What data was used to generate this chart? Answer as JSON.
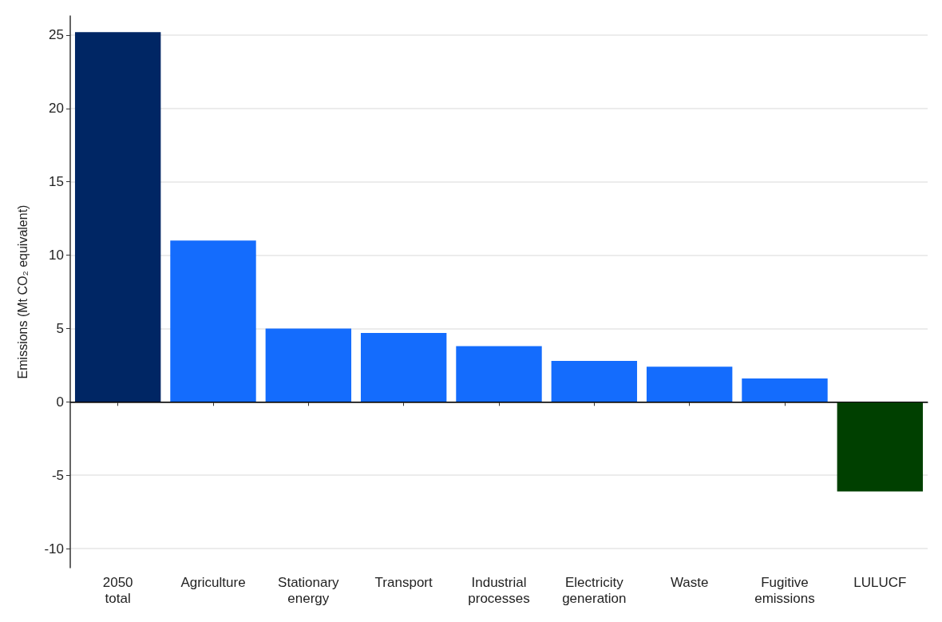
{
  "chart_data": {
    "type": "bar",
    "ylabel": "Emissions (Mt CO₂ equivalent)",
    "categories": [
      "2050 total",
      "Agriculture",
      "Stationary energy",
      "Transport",
      "Industrial processes",
      "Electricity generation",
      "Waste",
      "Fugitive emissions",
      "LULUCF"
    ],
    "values": [
      25.2,
      11.0,
      5.0,
      4.7,
      3.8,
      2.8,
      2.4,
      1.6,
      -6.1
    ],
    "colors": [
      "#002664",
      "#146cfd",
      "#146cfd",
      "#146cfd",
      "#146cfd",
      "#146cfd",
      "#146cfd",
      "#146cfd",
      "#004000"
    ],
    "ylim": [
      -11.3,
      26.3
    ],
    "yticks": [
      -10,
      -5,
      0,
      5,
      10,
      15,
      20,
      25
    ],
    "grid": "y",
    "ref_lines": [
      {
        "axis": "y",
        "value": 0,
        "color": "#000000"
      }
    ]
  }
}
